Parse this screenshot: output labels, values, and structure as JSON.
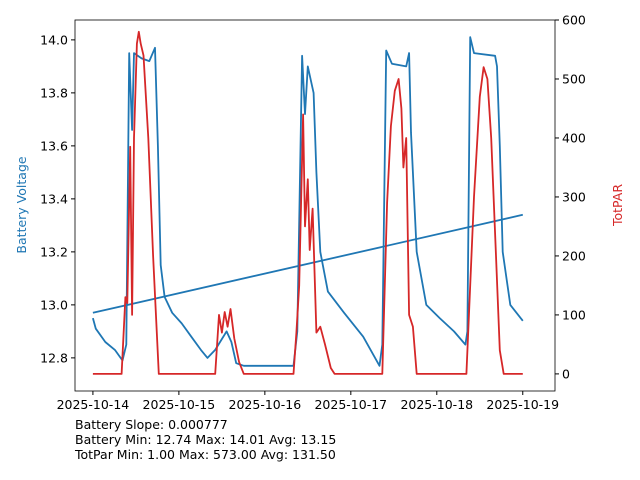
{
  "chart_data": {
    "type": "line",
    "xlim": [
      "2025-10-13 19:00",
      "2025-10-19 09:00"
    ],
    "xticks": [
      "2025-10-14",
      "2025-10-15",
      "2025-10-16",
      "2025-10-17",
      "2025-10-18",
      "2025-10-19"
    ],
    "left_axis": {
      "label": "Battery Voltage",
      "color": "#1f77b4",
      "ylim": [
        12.675,
        14.075
      ],
      "ticks": [
        "12.8",
        "13.0",
        "13.2",
        "13.4",
        "13.6",
        "13.8",
        "14.0"
      ]
    },
    "right_axis": {
      "label": "TotPAR",
      "color": "#d62728",
      "ylim": [
        -29,
        600
      ],
      "ticks": [
        "0",
        "100",
        "200",
        "300",
        "400",
        "500",
        "600"
      ]
    },
    "grid": false,
    "series": [
      {
        "axis": "left",
        "color": "#1f77b4",
        "points": [
          [
            "2025-10-14 00:00",
            12.95
          ],
          [
            "2025-10-14 00:48",
            12.91
          ],
          [
            "2025-10-14 03:28",
            12.86
          ],
          [
            "2025-10-14 06:08",
            12.83
          ],
          [
            "2025-10-14 08:16",
            12.79
          ],
          [
            "2025-10-14 09:20",
            12.85
          ],
          [
            "2025-10-14 10:08",
            13.95
          ],
          [
            "2025-10-14 10:56",
            13.66
          ],
          [
            "2025-10-14 11:28",
            13.95
          ],
          [
            "2025-10-14 13:36",
            13.93
          ],
          [
            "2025-10-14 15:44",
            13.92
          ],
          [
            "2025-10-14 17:20",
            13.97
          ],
          [
            "2025-10-14 18:08",
            13.6
          ],
          [
            "2025-10-14 18:56",
            13.15
          ],
          [
            "2025-10-14 20:00",
            13.03
          ],
          [
            "2025-10-14 22:08",
            12.97
          ],
          [
            "2025-10-15 00:48",
            12.93
          ],
          [
            "2025-10-15 03:28",
            12.88
          ],
          [
            "2025-10-15 06:08",
            12.83
          ],
          [
            "2025-10-15 08:00",
            12.8
          ],
          [
            "2025-10-15 10:08",
            12.83
          ],
          [
            "2025-10-15 13:20",
            12.9
          ],
          [
            "2025-10-15 14:40",
            12.86
          ],
          [
            "2025-10-15 16:00",
            12.78
          ],
          [
            "2025-10-15 18:08",
            12.77
          ],
          [
            "2025-10-16 08:00",
            12.77
          ],
          [
            "2025-10-16 09:04",
            12.9
          ],
          [
            "2025-10-16 10:24",
            13.94
          ],
          [
            "2025-10-16 11:12",
            13.72
          ],
          [
            "2025-10-16 12:00",
            13.9
          ],
          [
            "2025-10-16 13:36",
            13.8
          ],
          [
            "2025-10-16 14:24",
            13.5
          ],
          [
            "2025-10-16 15:28",
            13.2
          ],
          [
            "2025-10-16 17:36",
            13.05
          ],
          [
            "2025-10-16 22:08",
            12.97
          ],
          [
            "2025-10-17 03:28",
            12.88
          ],
          [
            "2025-10-17 08:00",
            12.77
          ],
          [
            "2025-10-17 08:48",
            12.85
          ],
          [
            "2025-10-17 09:52",
            13.96
          ],
          [
            "2025-10-17 11:28",
            13.91
          ],
          [
            "2025-10-17 15:28",
            13.9
          ],
          [
            "2025-10-17 16:16",
            13.95
          ],
          [
            "2025-10-17 16:48",
            13.65
          ],
          [
            "2025-10-17 18:24",
            13.2
          ],
          [
            "2025-10-17 21:04",
            13.0
          ],
          [
            "2025-10-18 00:48",
            12.95
          ],
          [
            "2025-10-18 04:48",
            12.9
          ],
          [
            "2025-10-18 08:00",
            12.85
          ],
          [
            "2025-10-18 08:32",
            12.9
          ],
          [
            "2025-10-18 09:20",
            14.01
          ],
          [
            "2025-10-18 10:24",
            13.95
          ],
          [
            "2025-10-18 16:16",
            13.94
          ],
          [
            "2025-10-18 16:48",
            13.9
          ],
          [
            "2025-10-18 17:36",
            13.6
          ],
          [
            "2025-10-18 18:24",
            13.2
          ],
          [
            "2025-10-18 20:32",
            13.0
          ],
          [
            "2025-10-19 00:00",
            12.94
          ]
        ]
      },
      {
        "axis": "left",
        "color": "#1f77b4",
        "points": [
          [
            "2025-10-14 00:00",
            12.97
          ],
          [
            "2025-10-19 00:00",
            13.34
          ]
        ]
      },
      {
        "axis": "right",
        "color": "#d62728",
        "points": [
          [
            "2025-10-14 00:00",
            0
          ],
          [
            "2025-10-14 08:00",
            0
          ],
          [
            "2025-10-14 09:04",
            130
          ],
          [
            "2025-10-14 09:36",
            120
          ],
          [
            "2025-10-14 10:24",
            385
          ],
          [
            "2025-10-14 10:56",
            100
          ],
          [
            "2025-10-14 11:28",
            400
          ],
          [
            "2025-10-14 12:16",
            560
          ],
          [
            "2025-10-14 12:48",
            580
          ],
          [
            "2025-10-14 13:20",
            560
          ],
          [
            "2025-10-14 14:08",
            540
          ],
          [
            "2025-10-14 15:28",
            400
          ],
          [
            "2025-10-14 16:48",
            200
          ],
          [
            "2025-10-14 18:24",
            0
          ],
          [
            "2025-10-15 10:08",
            0
          ],
          [
            "2025-10-15 11:12",
            100
          ],
          [
            "2025-10-15 12:00",
            70
          ],
          [
            "2025-10-15 12:48",
            105
          ],
          [
            "2025-10-15 13:36",
            80
          ],
          [
            "2025-10-15 14:24",
            110
          ],
          [
            "2025-10-15 15:28",
            60
          ],
          [
            "2025-10-15 16:48",
            20
          ],
          [
            "2025-10-15 18:08",
            0
          ],
          [
            "2025-10-16 08:00",
            0
          ],
          [
            "2025-10-16 08:48",
            70
          ],
          [
            "2025-10-16 09:36",
            150
          ],
          [
            "2025-10-16 10:40",
            440
          ],
          [
            "2025-10-16 11:12",
            250
          ],
          [
            "2025-10-16 12:00",
            330
          ],
          [
            "2025-10-16 12:32",
            210
          ],
          [
            "2025-10-16 13:20",
            280
          ],
          [
            "2025-10-16 14:24",
            70
          ],
          [
            "2025-10-16 15:28",
            80
          ],
          [
            "2025-10-16 16:48",
            50
          ],
          [
            "2025-10-16 18:24",
            10
          ],
          [
            "2025-10-16 19:28",
            0
          ],
          [
            "2025-10-17 08:48",
            0
          ],
          [
            "2025-10-17 10:08",
            290
          ],
          [
            "2025-10-17 11:12",
            420
          ],
          [
            "2025-10-17 12:16",
            480
          ],
          [
            "2025-10-17 13:20",
            500
          ],
          [
            "2025-10-17 14:08",
            450
          ],
          [
            "2025-10-17 14:40",
            350
          ],
          [
            "2025-10-17 15:28",
            400
          ],
          [
            "2025-10-17 16:16",
            100
          ],
          [
            "2025-10-17 17:20",
            80
          ],
          [
            "2025-10-17 18:24",
            0
          ],
          [
            "2025-10-18 08:16",
            0
          ],
          [
            "2025-10-18 10:24",
            300
          ],
          [
            "2025-10-18 12:00",
            470
          ],
          [
            "2025-10-18 13:04",
            520
          ],
          [
            "2025-10-18 14:08",
            500
          ],
          [
            "2025-10-18 15:12",
            400
          ],
          [
            "2025-10-18 16:32",
            200
          ],
          [
            "2025-10-18 17:36",
            40
          ],
          [
            "2025-10-18 18:40",
            0
          ],
          [
            "2025-10-19 00:00",
            0
          ]
        ]
      }
    ]
  },
  "stats": {
    "slope": "Battery Slope: 0.000777",
    "battery": "Battery Min: 12.74 Max: 14.01 Avg: 13.15",
    "par": "TotPar Min: 1.00 Max: 573.00 Avg: 131.50"
  }
}
